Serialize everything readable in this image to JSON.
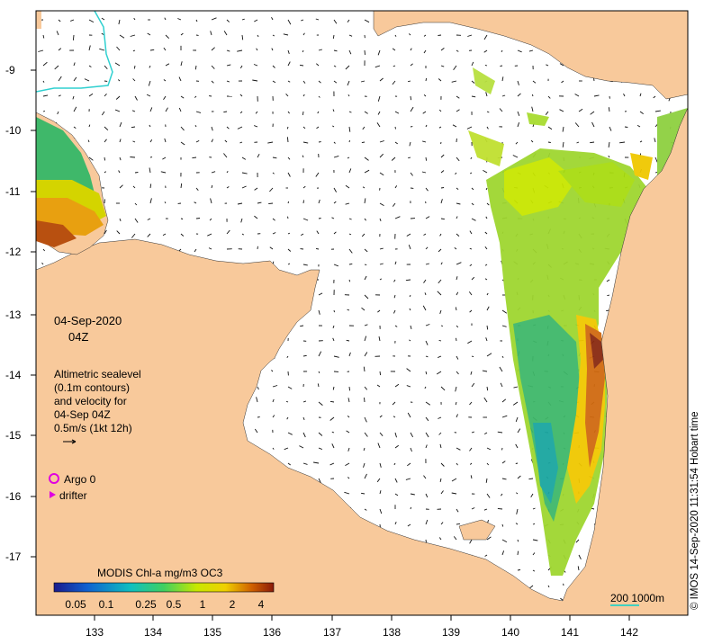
{
  "date": "04-Sep-2020",
  "time": "04Z",
  "legend": {
    "line1": "Altimetric sealevel",
    "line2": "(0.1m contours)",
    "line3": "and velocity for",
    "line4": "04-Sep 04Z",
    "line5": "0.5m/s (1kt 12h)"
  },
  "argo_label": "Argo 0",
  "drifter_label": "drifter",
  "colorbar": {
    "title": "MODIS Chl-a mg/m3 OC3",
    "ticks": [
      "0.05",
      "0.1",
      "0.25",
      "0.5",
      "1",
      "2",
      "4"
    ]
  },
  "scale_label": "200  1000m",
  "credit": "© IMOS 14-Sep-2020 11:31:54 Hobart time",
  "x_ticks": [
    "133",
    "134",
    "135",
    "136",
    "137",
    "138",
    "139",
    "140",
    "141",
    "142"
  ],
  "y_ticks": [
    "-9",
    "-10",
    "-11",
    "-12",
    "-13",
    "-14",
    "-15",
    "-16",
    "-17"
  ],
  "colors": {
    "land": "#f8c99b",
    "ocean": "#ffffff",
    "argo": "#e000e0",
    "drifter": "#e000e0",
    "scale_line": "#40d0c0"
  }
}
